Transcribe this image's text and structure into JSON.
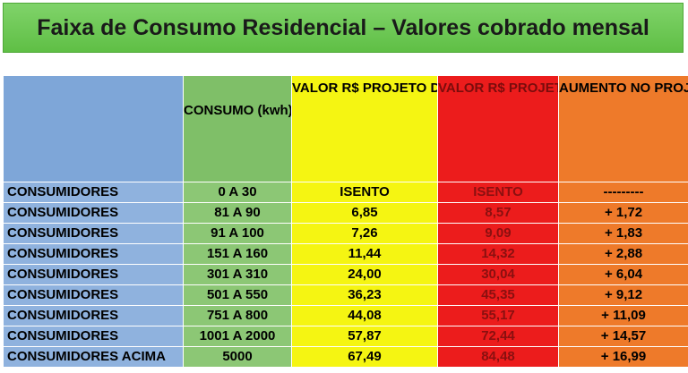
{
  "title": "Faixa de Consumo Residencial – Valores cobrado mensal",
  "headers": {
    "col0": "",
    "col1": "CONSUMO (kwh)",
    "col2": "VALOR R$ PROJETO DA GESTÃO DHONI AMORIM",
    "col3": "VALOR R$ PROJETO DA GESTÃO CAPPELLARO",
    "col4": "AUMENTO NO PROJETO DA GESTÃO DE CAPPELLARO"
  },
  "rows": [
    [
      "CONSUMIDORES",
      "0 A 30",
      "ISENTO",
      "ISENTO",
      "---------"
    ],
    [
      "CONSUMIDORES",
      "81 A 90",
      "6,85",
      "8,57",
      "+ 1,72"
    ],
    [
      "CONSUMIDORES",
      "91 A  100",
      "7,26",
      "9,09",
      "+ 1,83"
    ],
    [
      "CONSUMIDORES",
      "151 A 160",
      "11,44",
      "14,32",
      "+ 2,88"
    ],
    [
      "CONSUMIDORES",
      "301 A 310",
      "24,00",
      "30,04",
      "+ 6,04"
    ],
    [
      "CONSUMIDORES",
      "501 A 550",
      "36,23",
      "45,35",
      "+ 9,12"
    ],
    [
      "CONSUMIDORES",
      "751 A 800",
      "44,08",
      "55,17",
      "+ 11,09"
    ],
    [
      "CONSUMIDORES",
      "1001 A 2000",
      "57,87",
      "72,44",
      "+ 14,57"
    ],
    [
      "CONSUMIDORES ACIMA",
      "5000",
      "67,49",
      "84,48",
      "+ 16,99"
    ]
  ],
  "colors": {
    "title_bg": "#6cc852",
    "col0": "#7ea6d8",
    "col1": "#7fbf68",
    "col2": "#f5f512",
    "col3": "#ec1c1c",
    "col4": "#ee7a2a"
  }
}
